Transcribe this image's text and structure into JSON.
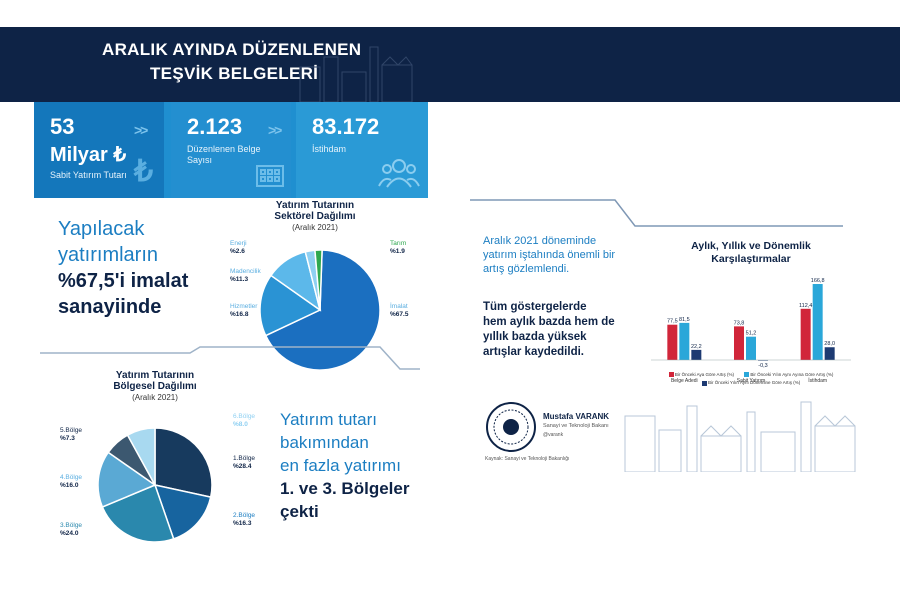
{
  "header": {
    "title_line1": "ARALIK AYINDA DÜZENLENEN",
    "title_line2": "TEŞVİK BELGELERİ"
  },
  "stats": [
    {
      "value_line1": "53",
      "value_line2": "Milyar ₺",
      "label": "Sabit Yatırım Tutarı",
      "icon": "lira-icon"
    },
    {
      "value_line1": "2.123",
      "label": "Düzenlenen Belge Sayısı",
      "icon": "building-icon"
    },
    {
      "value_line1": "83.172",
      "label": "İstihdam",
      "icon": "people-icon"
    }
  ],
  "manufacturing_text": {
    "line1": "Yapılacak",
    "line2": "yatırımların",
    "line3": "%67,5'i imalat",
    "line4": "sanayiinde"
  },
  "region_text": {
    "line1": "Yatırım tutarı",
    "line2": "bakımından",
    "line3": "en fazla yatırımı",
    "line4": "1. ve 3. Bölgeler",
    "line5": "çekti"
  },
  "right_panel": {
    "text_line1": "Aralık 2021 döneminde",
    "text_line2": "yatırım iştahında önemli bir",
    "text_line3": "artış gözlemlendi.",
    "bold_line1": "Tüm göstergelerde",
    "bold_line2": "hem aylık bazda  hem de",
    "bold_line3": "yıllık bazda yüksek",
    "bold_line4": "artışlar kaydedildi.",
    "minister_name": "Mustafa VARANK",
    "minister_role": "Sanayi ve Teknoloji Bakanı",
    "social": "@varank",
    "source": "Kaynak: Sanayi ve Teknoloji Bakanlığı"
  },
  "colors": {
    "navy": "#0e2346",
    "blue": "#1c7ec2",
    "bar_red": "#d1263a",
    "bar_cyan": "#2aa7d9",
    "bar_navy": "#1d3a72"
  },
  "chart_data": [
    {
      "type": "pie",
      "title": "Yatırım Tutarının Sektörel Dağılımı",
      "subtitle": "(Aralık 2021)",
      "slices": [
        {
          "name": "İmalat",
          "label": "%67.5",
          "value": 67.5,
          "color": "#1b6fc0"
        },
        {
          "name": "Hizmetler",
          "label": "%16.8",
          "value": 16.8,
          "color": "#2a93d4"
        },
        {
          "name": "Madencilik",
          "label": "%11.3",
          "value": 11.3,
          "color": "#5cb8ea"
        },
        {
          "name": "Enerji",
          "label": "%2.6",
          "value": 2.6,
          "color": "#8fd0f2"
        },
        {
          "name": "Tarım",
          "label": "%1.9",
          "value": 1.9,
          "color": "#2fa84f"
        }
      ]
    },
    {
      "type": "pie",
      "title": "Yatırım Tutarının Bölgesel Dağılımı",
      "subtitle": "(Aralık 2021)",
      "slices": [
        {
          "name": "1.Bölge",
          "label": "%28.4",
          "value": 28.4,
          "color": "#173a5e"
        },
        {
          "name": "2.Bölge",
          "label": "%16.3",
          "value": 16.3,
          "color": "#17649f"
        },
        {
          "name": "3.Bölge",
          "label": "%24.0",
          "value": 24.0,
          "color": "#2a88ad"
        },
        {
          "name": "4.Bölge",
          "label": "%16.0",
          "value": 16.0,
          "color": "#5aa9d4"
        },
        {
          "name": "5.Bölge",
          "label": "%7.3",
          "value": 7.3,
          "color": "#3c5870"
        },
        {
          "name": "6.Bölge",
          "label": "%8.0",
          "value": 8.0,
          "color": "#a8d9f0"
        }
      ]
    },
    {
      "type": "bar",
      "title": "Aylık, Yıllık ve Dönemlik Karşılaştırmalar",
      "categories": [
        "Belge Adedi",
        "Sabit Yatırım",
        "İstihdam"
      ],
      "series": [
        {
          "name": "Bir Önceki Aya Göre Artış (%)",
          "values": [
            77.5,
            73.8,
            112.4
          ],
          "color": "#d1263a"
        },
        {
          "name": "Bir Önceki Yılın Aynı Ayına Göre Artış (%)",
          "values": [
            81.5,
            51.2,
            166.8
          ],
          "color": "#2aa7d9"
        },
        {
          "name": "Bir Önceki Yılın Aynı Dönemine Göre Artış (%)",
          "values": [
            22.2,
            -0.3,
            28.0
          ],
          "color": "#1d3a72"
        }
      ],
      "value_labels": [
        [
          "77,5",
          "81,5",
          "22,2"
        ],
        [
          "73,8",
          "51,2",
          "-0,3"
        ],
        [
          "112,4",
          "166,8",
          "28,0"
        ]
      ],
      "ylim": [
        -10,
        180
      ]
    }
  ]
}
